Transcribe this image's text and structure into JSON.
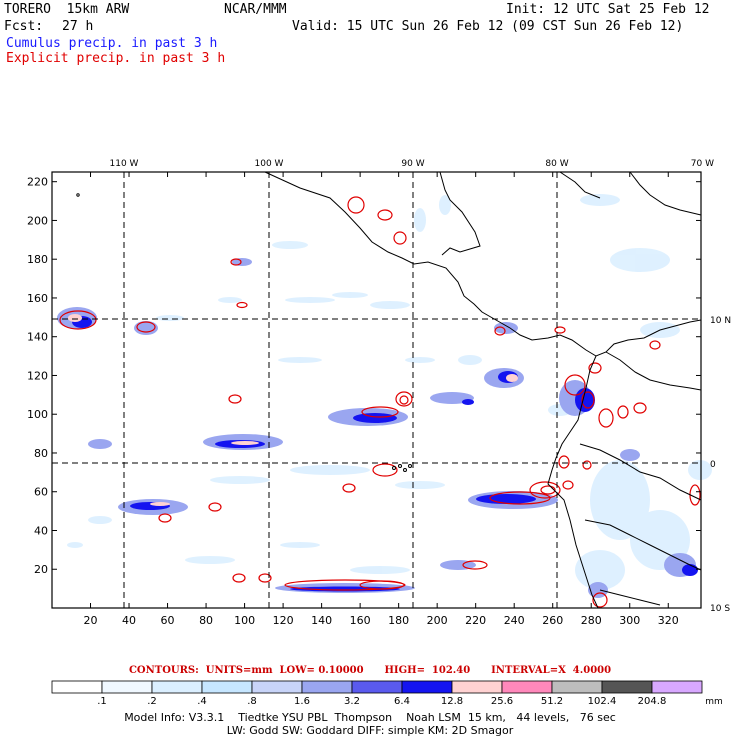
{
  "header": {
    "model": "TORERO  15km ARW",
    "center": "NCAR/MMM",
    "init": "Init: 12 UTC Sat 25 Feb 12",
    "fcst_label": "Fcst:",
    "fcst_value": "27 h",
    "valid": "Valid: 15 UTC Sun 26 Feb 12 (09 CST Sun 26 Feb 12)",
    "cumulus_title": "Cumulus precip. in past 3 h",
    "explicit_title": "Explicit precip. in past 3 h"
  },
  "colors": {
    "cumulus": "#1a1aff",
    "explicit": "#e00000",
    "coast": "#000000",
    "grid": "#000000"
  },
  "map": {
    "lon_labels": [
      "110 W",
      "100 W",
      "90 W",
      "80 W",
      "70 W"
    ],
    "lat_labels": [
      "10 N",
      "0",
      "10 S"
    ],
    "x_ticks": [
      "20",
      "40",
      "60",
      "80",
      "100",
      "120",
      "140",
      "160",
      "180",
      "200",
      "220",
      "240",
      "260",
      "280",
      "300",
      "320"
    ],
    "y_ticks": [
      "20",
      "40",
      "60",
      "80",
      "100",
      "120",
      "140",
      "160",
      "180",
      "200",
      "220"
    ]
  },
  "contours": {
    "text": "CONTOURS:  UNITS=mm  LOW= 0.10000      HIGH=  102.40      INTERVAL=X  4.0000"
  },
  "legend": {
    "labels": [
      ".1",
      ".2",
      ".4",
      ".8",
      "1.6",
      "3.2",
      "6.4",
      "12.8",
      "25.6",
      "51.2",
      "102.4",
      "204.8"
    ],
    "unit": "mm",
    "colors": [
      "#ffffff",
      "#f0f8ff",
      "#dbefff",
      "#c6e6ff",
      "#c8d4f8",
      "#9aa6f0",
      "#5a5aee",
      "#1414f0",
      "#ffd2d2",
      "#ff88bb",
      "#bdbdbd",
      "#555555",
      "#d8a8ff"
    ]
  },
  "footer": {
    "line1": "Model Info: V3.3.1    Tiedtke YSU PBL  Thompson    Noah LSM  15 km,   44 levels,   76 sec",
    "line2": "LW: Godd SW: Goddard DIFF: simple KM: 2D Smagor"
  }
}
